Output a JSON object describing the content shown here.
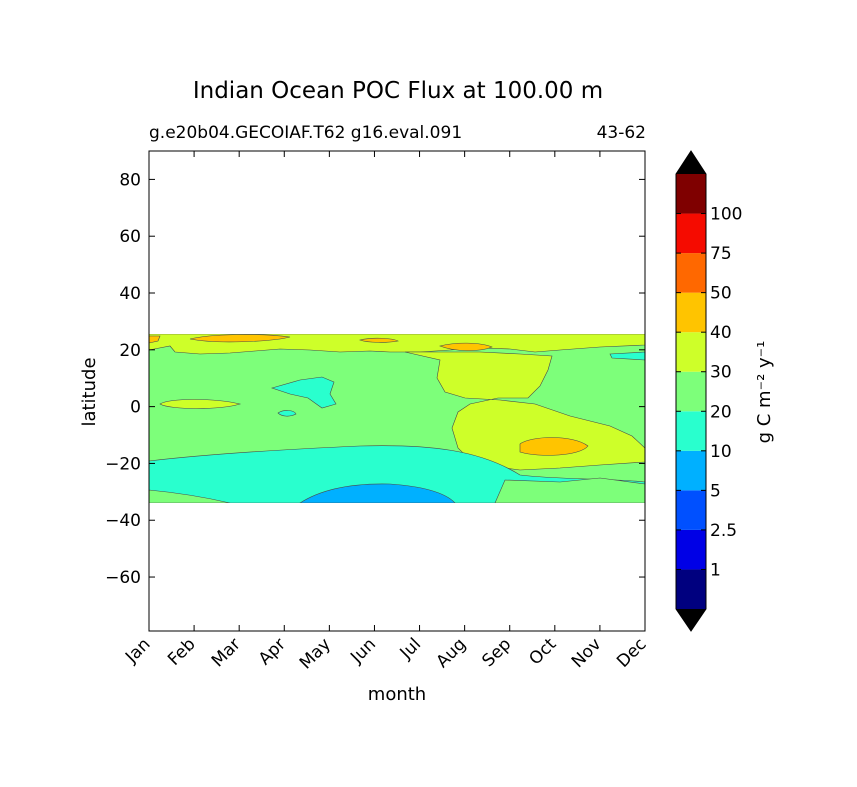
{
  "chart_data": {
    "type": "filled-contour",
    "title": "Indian Ocean POC Flux at 100.00 m",
    "subtitle_left": "g.e20b04.GECOIAF.T62 g16.eval.091",
    "subtitle_right": "43-62",
    "xlabel": "month",
    "ylabel": "latitude",
    "x_ticks": [
      "Jan",
      "Feb",
      "Mar",
      "Apr",
      "May",
      "Jun",
      "Jul",
      "Aug",
      "Sep",
      "Oct",
      "Nov",
      "Dec"
    ],
    "y_ticks": [
      80,
      60,
      40,
      20,
      0,
      -20,
      -40,
      -60
    ],
    "y_range": [
      -79,
      90
    ],
    "data_lat_range": [
      -34,
      25.5
    ],
    "colorbar": {
      "label": "g C m⁻² y⁻¹",
      "levels": [
        "1",
        "2.5",
        "5",
        "10",
        "20",
        "30",
        "40",
        "50",
        "75",
        "100"
      ],
      "colors": [
        "#00007f",
        "#0000e6",
        "#0050ff",
        "#00b0ff",
        "#29ffce",
        "#7dff7a",
        "#ceff29",
        "#ffc400",
        "#ff6800",
        "#f50b00",
        "#7f0000"
      ],
      "extend_low_color": "#000000",
      "extend_high_color": "#000000"
    },
    "regions": [
      {
        "name": "background 20-30",
        "color": "#7dff7a"
      },
      {
        "name": "south band 10-20",
        "color": "#29ffce"
      },
      {
        "name": "south minimum 5-10",
        "color": "#00b0ff"
      },
      {
        "name": "north band 30-40",
        "color": "#ceff29"
      },
      {
        "name": "north maxima 40-50",
        "color": "#ffc400"
      },
      {
        "name": "Sep-Nov tongue 30-40",
        "color": "#ceff29"
      },
      {
        "name": "Oct maximum 40-50",
        "color": "#ffc400"
      }
    ]
  }
}
